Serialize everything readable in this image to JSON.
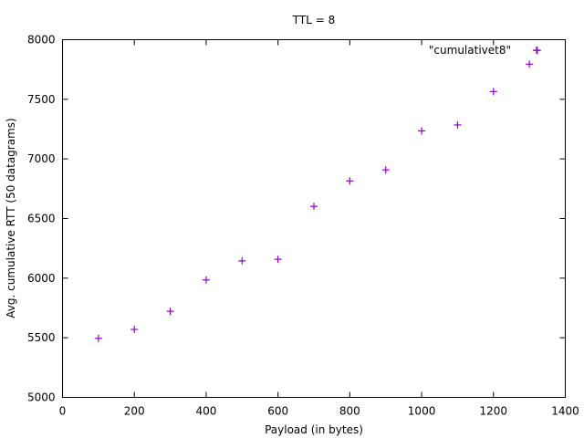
{
  "chart_data": {
    "type": "scatter",
    "title": "TTL = 8",
    "xlabel": "Payload (in bytes)",
    "ylabel": "Avg. cumulative RTT (50 datagrams)",
    "xlim": [
      0,
      1400
    ],
    "ylim": [
      5000,
      8000
    ],
    "xticks": [
      0,
      200,
      400,
      600,
      800,
      1000,
      1200,
      1400
    ],
    "xtick_labels": [
      "0",
      "200",
      "400",
      "600",
      "800",
      "1000",
      "1200",
      "1400"
    ],
    "yticks": [
      5000,
      5500,
      6000,
      6500,
      7000,
      7500,
      8000
    ],
    "ytick_labels": [
      "5000",
      "5500",
      "6000",
      "6500",
      "7000",
      "7500",
      "8000"
    ],
    "grid": false,
    "legend_position": "top-right",
    "series": [
      {
        "name": "\"cumulativet8\"",
        "color": "#9400d3",
        "marker": "plus",
        "x": [
          100,
          200,
          300,
          400,
          500,
          600,
          700,
          800,
          900,
          1000,
          1100,
          1200,
          1300,
          1322
        ],
        "y": [
          5495,
          5570,
          5722,
          5985,
          6145,
          6158,
          6602,
          6815,
          6908,
          7235,
          7285,
          7565,
          7795,
          7910
        ]
      }
    ]
  }
}
